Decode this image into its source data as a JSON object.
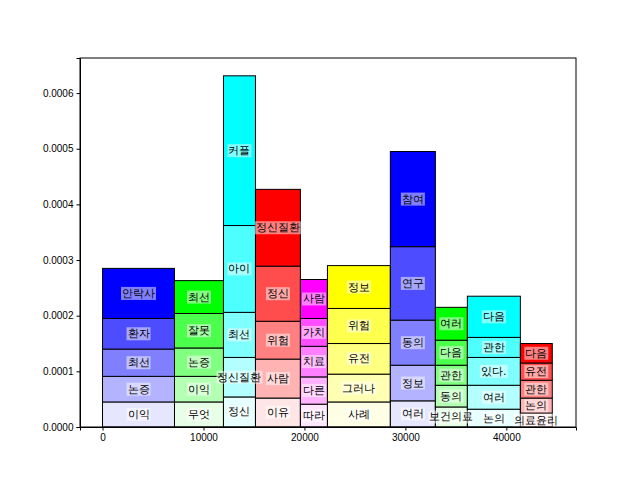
{
  "chart_data": {
    "type": "bar",
    "stacked": true,
    "bins": [
      0,
      7130,
      11980,
      15150,
      19600,
      22280,
      28510,
      32970,
      36140,
      41390,
      44550
    ],
    "colors": [
      "#0000ff",
      "#00ff00",
      "#00ffff",
      "#ff0000",
      "#ff00ff",
      "#ffff00",
      "#0000ff",
      "#00ff00",
      "#00ffff",
      "#ff0000"
    ],
    "series": [
      {
        "values": [
          4.5e-05,
          4.5e-05,
          5.4e-05,
          5.2e-05,
          4.1e-05,
          4.5e-05,
          4.7e-05,
          3.6e-05,
          3.2e-05,
          2.5e-05
        ],
        "labels": [
          "이익",
          "무엇",
          "정신",
          "이유",
          "따라",
          "사례",
          "여러",
          "보건의료",
          "논의",
          "의료윤리"
        ]
      },
      {
        "values": [
          4.6e-05,
          4.6e-05,
          7.1e-05,
          7e-05,
          4.9e-05,
          5e-05,
          6.4e-05,
          3.9e-05,
          4.3e-05,
          2.7e-05
        ],
        "labels": [
          "논증",
          "이익",
          "정신질환",
          "사람",
          "다른",
          "그러나",
          "정보",
          "동의",
          "여러",
          "논의"
        ]
      },
      {
        "values": [
          4.9e-05,
          5.1e-05,
          8.1e-05,
          6.8e-05,
          5.5e-05,
          5.5e-05,
          8.1e-05,
          3.6e-05,
          5e-05,
          3.2e-05
        ],
        "labels": [
          "최선",
          "논증",
          "최선",
          "위험",
          "치료",
          "유전",
          "동의",
          "관한",
          "있다.",
          "관한"
        ]
      },
      {
        "values": [
          5.5e-05,
          6.2e-05,
          0.000156,
          9.9e-05,
          5e-05,
          6.3e-05,
          0.000132,
          4.5e-05,
          3.6e-05,
          3.1e-05
        ],
        "labels": [
          "환자",
          "잘못",
          "아이",
          "정신",
          "가치",
          "위험",
          "연구",
          "다음",
          "관한",
          "유전"
        ]
      },
      {
        "values": [
          9e-05,
          5.9e-05,
          0.000269,
          0.000138,
          7e-05,
          7.7e-05,
          0.000171,
          5.9e-05,
          7.4e-05,
          3.5e-05
        ],
        "labels": [
          "안락사",
          "최선",
          "커플",
          "정신질환",
          "사람",
          "정보",
          "참여",
          "여러",
          "다음",
          "다음"
        ]
      }
    ],
    "xlim": [
      -2230,
      46900
    ],
    "xticks": [
      0,
      10000,
      20000,
      30000,
      40000
    ],
    "ylim": [
      0,
      0.000663
    ],
    "yticks": [
      {
        "value": 0,
        "label": "0.0000"
      },
      {
        "value": 0.0001,
        "label": "0.0001"
      },
      {
        "value": 0.0002,
        "label": "0.0002"
      },
      {
        "value": 0.0003,
        "label": "0.0003"
      },
      {
        "value": 0.0004,
        "label": "0.0004"
      },
      {
        "value": 0.0005,
        "label": "0.0005"
      },
      {
        "value": 0.0006,
        "label": "0.0006"
      }
    ]
  }
}
